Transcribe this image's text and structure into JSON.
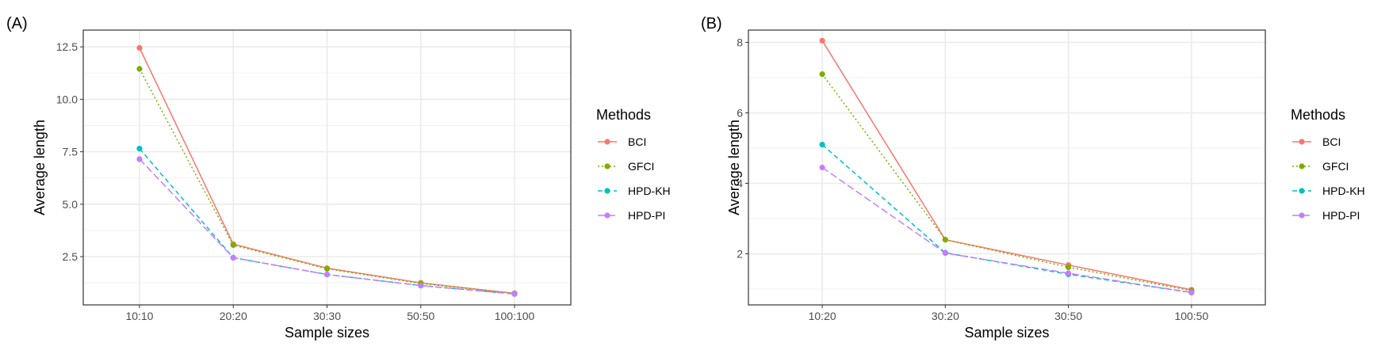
{
  "legend": {
    "title": "Methods",
    "items": [
      {
        "label": "BCI",
        "color": "#F8766D",
        "dash": "solid"
      },
      {
        "label": "GFCI",
        "color": "#7CAE00",
        "dash": "dotted"
      },
      {
        "label": "HPD-KH",
        "color": "#00BFC4",
        "dash": "dashed"
      },
      {
        "label": "HPD-PI",
        "color": "#C77CFF",
        "dash": "longdash"
      }
    ]
  },
  "chart_data": [
    {
      "panel_label": "(A)",
      "type": "line",
      "xlabel": "Sample sizes",
      "ylabel": "Average length",
      "categories": [
        "10:10",
        "20:20",
        "30:30",
        "50:50",
        "100:100"
      ],
      "ylim": [
        0.2,
        13.3
      ],
      "yticks": [
        2.5,
        5.0,
        7.5,
        10.0,
        12.5
      ],
      "ytick_labels": [
        "2.5",
        "5.0",
        "7.5",
        "10.0",
        "12.5"
      ],
      "grid": true,
      "legend_position": "right",
      "series": [
        {
          "name": "BCI",
          "values": [
            12.45,
            3.1,
            1.95,
            1.25,
            0.75
          ]
        },
        {
          "name": "GFCI",
          "values": [
            11.45,
            3.05,
            1.92,
            1.22,
            0.75
          ]
        },
        {
          "name": "HPD-KH",
          "values": [
            7.65,
            2.45,
            1.65,
            1.12,
            0.72
          ]
        },
        {
          "name": "HPD-PI",
          "values": [
            7.15,
            2.45,
            1.65,
            1.12,
            0.72
          ]
        }
      ]
    },
    {
      "panel_label": "(B)",
      "type": "line",
      "xlabel": "Sample sizes",
      "ylabel": "Average length",
      "categories": [
        "10:20",
        "30:20",
        "30:50",
        "100:50"
      ],
      "ylim": [
        0.55,
        8.35
      ],
      "yticks": [
        2,
        4,
        6,
        8
      ],
      "ytick_labels": [
        "2",
        "4",
        "6",
        "8"
      ],
      "grid": true,
      "legend_position": "right",
      "series": [
        {
          "name": "BCI",
          "values": [
            8.05,
            2.4,
            1.68,
            0.98
          ]
        },
        {
          "name": "GFCI",
          "values": [
            7.1,
            2.4,
            1.62,
            0.95
          ]
        },
        {
          "name": "HPD-KH",
          "values": [
            5.1,
            2.03,
            1.42,
            0.9
          ]
        },
        {
          "name": "HPD-PI",
          "values": [
            4.45,
            2.02,
            1.45,
            0.9
          ]
        }
      ]
    }
  ]
}
